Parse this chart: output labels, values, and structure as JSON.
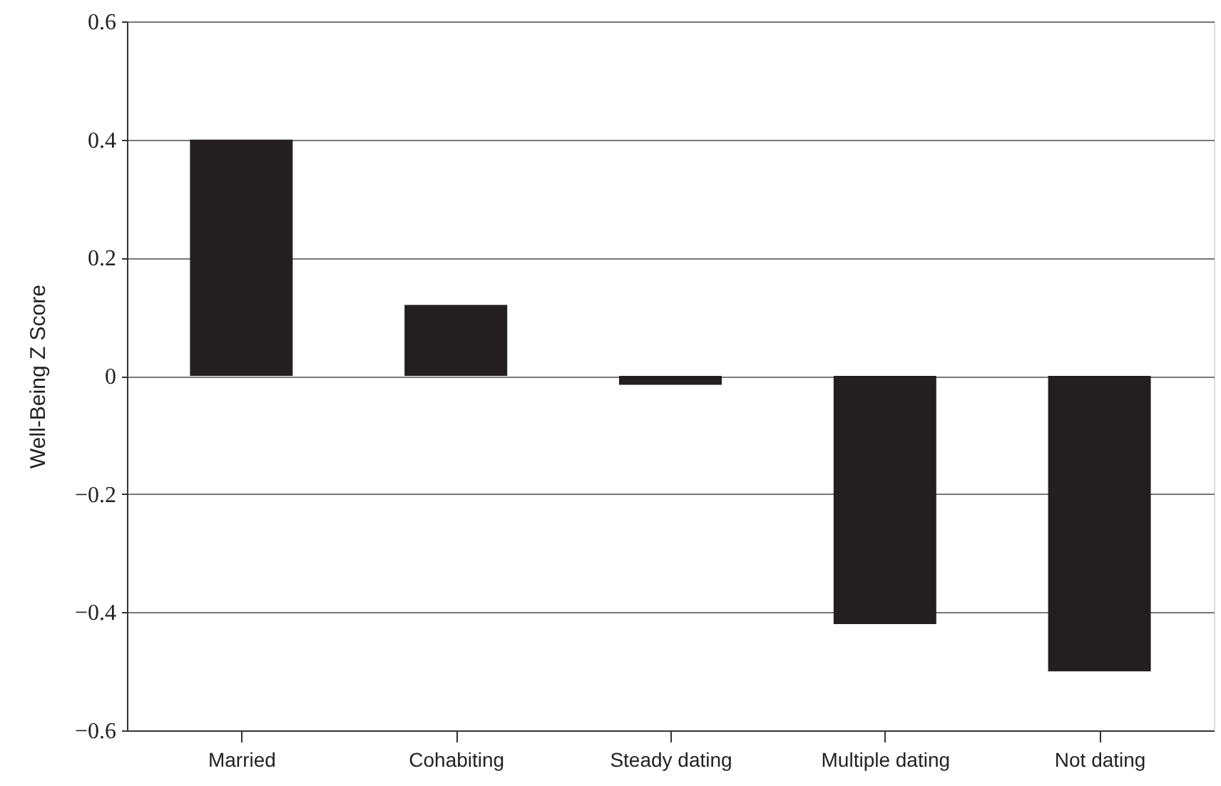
{
  "chart_data": {
    "type": "bar",
    "ylabel": "Well-Being Z Score",
    "categories": [
      "Married",
      "Cohabiting",
      "Steady dating",
      "Multiple dating",
      "Not dating"
    ],
    "values": [
      0.4,
      0.12,
      -0.015,
      -0.42,
      -0.5
    ],
    "color": "#231f20",
    "ylim": [
      -0.6,
      0.6
    ],
    "yticks": [
      -0.6,
      -0.4,
      -0.2,
      0,
      0.2,
      0.4,
      0.6
    ],
    "grid": "y"
  }
}
